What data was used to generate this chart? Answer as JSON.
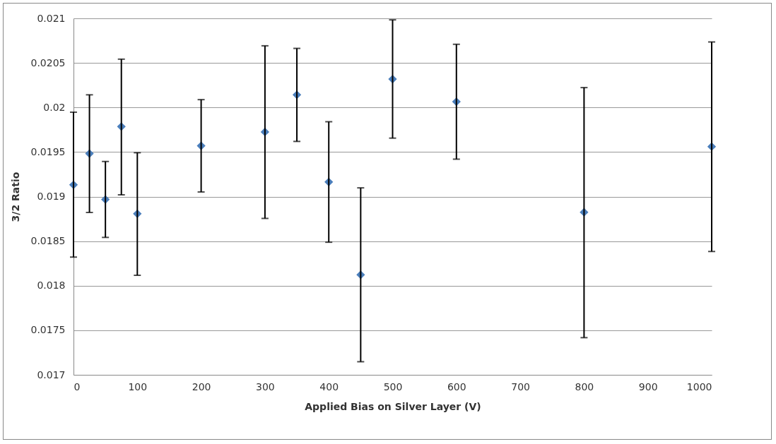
{
  "chart_data": {
    "type": "scatter",
    "xlabel": "Applied Bias on Silver Layer (V)",
    "ylabel": "3/2 Ratio",
    "x": [
      0,
      25,
      50,
      75,
      100,
      200,
      300,
      350,
      400,
      450,
      500,
      600,
      800,
      1000
    ],
    "series": [
      {
        "color": "#4a7ebb",
        "values": [
          0.019132,
          0.019483,
          0.018968,
          0.019786,
          0.018807,
          0.01957,
          0.019725,
          0.020142,
          0.019164,
          0.018122,
          0.020318,
          0.020065,
          0.018824,
          0.019561
        ],
        "errors": [
          [
            0.018321,
            0.019947
          ],
          [
            0.018822,
            0.020142
          ],
          [
            0.018542,
            0.019394
          ],
          [
            0.01902,
            0.020542
          ],
          [
            0.018117,
            0.019492
          ],
          [
            0.019052,
            0.020088
          ],
          [
            0.018755,
            0.020692
          ],
          [
            0.019619,
            0.020663
          ],
          [
            0.018488,
            0.01984
          ],
          [
            0.017147,
            0.019098
          ],
          [
            0.019656,
            0.020983
          ],
          [
            0.01942,
            0.020709
          ],
          [
            0.017417,
            0.020223
          ],
          [
            0.018384,
            0.020735
          ]
        ]
      }
    ],
    "xlim": [
      0,
      1000
    ],
    "xticks": [
      0,
      100,
      200,
      300,
      400,
      500,
      600,
      700,
      800,
      900,
      1000
    ],
    "ylim": [
      0.017,
      0.021
    ],
    "yticks": [
      0.017,
      0.0175,
      0.018,
      0.0185,
      0.019,
      0.0195,
      0.02,
      0.0205,
      0.021
    ],
    "grid": "y",
    "marker": "diamond"
  }
}
